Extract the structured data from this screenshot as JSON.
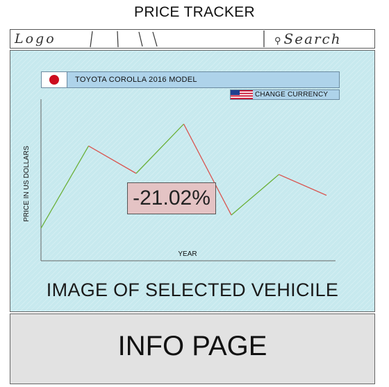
{
  "header": {
    "title": "PRICE TRACKER"
  },
  "nav": {
    "logo": "Logo",
    "search": "Search",
    "search_icon": "magnifier-sketch-icon"
  },
  "vehicle": {
    "title": "TOYOTA COROLLA 2016 MODEL",
    "flag_icon": "japan-flag-icon",
    "currency_button": "CHANGE CURRENCY",
    "currency_flag_icon": "us-flag-icon"
  },
  "chart_data": {
    "type": "line",
    "xlabel": "YEAR",
    "ylabel": "PRICE IN US DOLLARS",
    "x": [
      0,
      1,
      2,
      3,
      4,
      5,
      6
    ],
    "values": [
      5,
      80,
      55,
      100,
      17,
      54,
      35
    ],
    "ylim": [
      0,
      110
    ],
    "grid": false,
    "segment_colors": {
      "up": "#6bb03a",
      "down": "#d95550"
    }
  },
  "change": {
    "value": "-21.02%"
  },
  "main": {
    "image_label": "IMAGE OF SELECTED VEHICILE"
  },
  "info": {
    "label": "INFO PAGE"
  },
  "colors": {
    "panel_bg": "#c7e9ee",
    "bar_bg": "#aed3ea",
    "badge_bg": "#e4c3c4",
    "info_bg": "#e2e2e2"
  }
}
